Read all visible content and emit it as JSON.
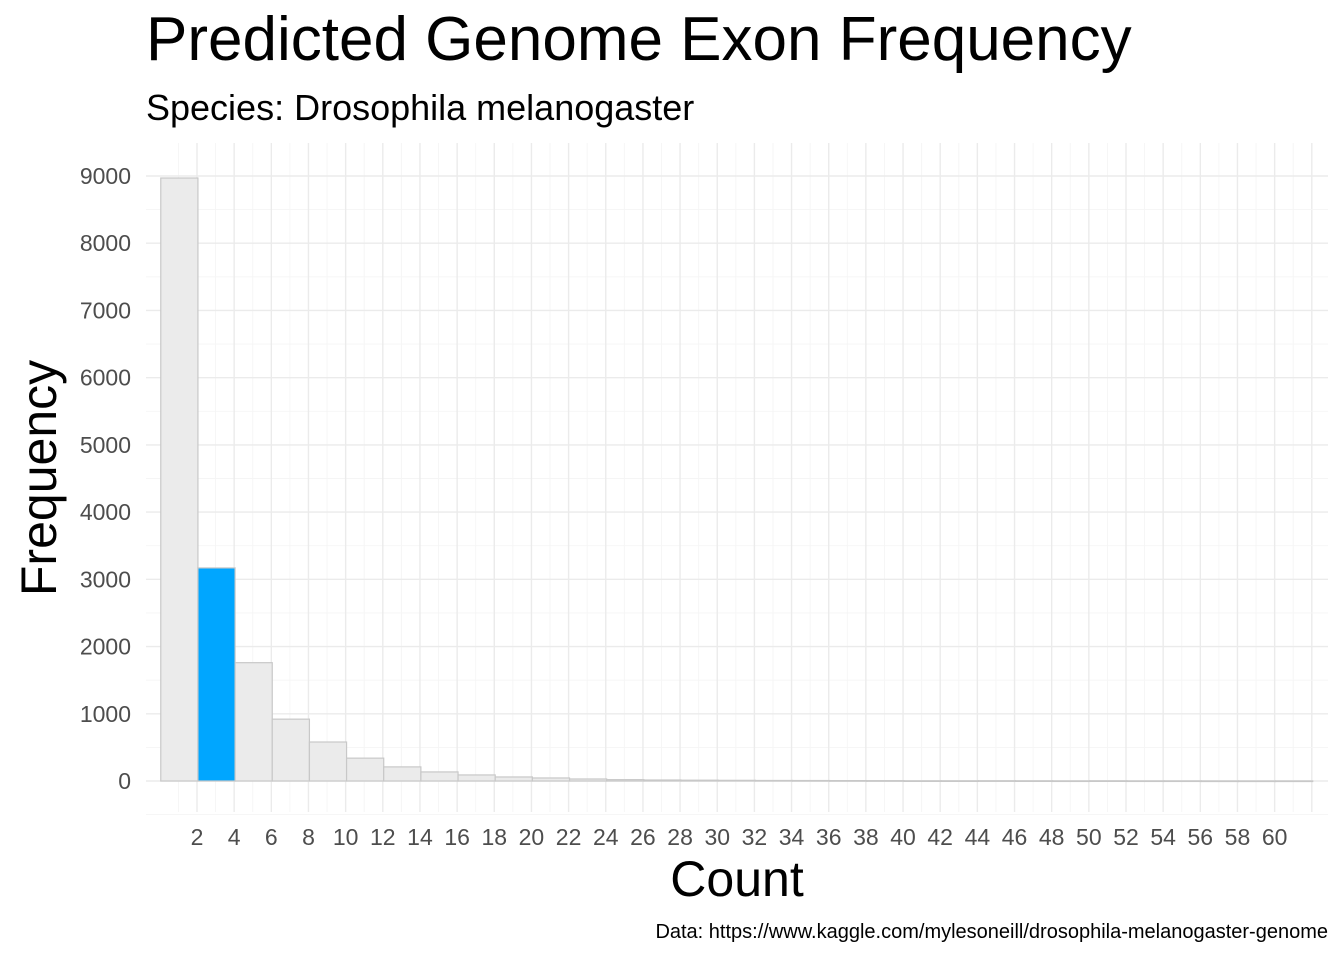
{
  "chart_data": {
    "type": "bar",
    "title": "Predicted Genome Exon Frequency",
    "subtitle": "Species: Drosophila melanogaster",
    "xlabel": "Count",
    "ylabel": "Frequency",
    "caption": "Data: https://www.kaggle.com/mylesoneill/drosophila-melanogaster-genome",
    "x_ticks": [
      "2",
      "4",
      "6",
      "8",
      "10",
      "12",
      "14",
      "16",
      "18",
      "20",
      "22",
      "24",
      "26",
      "28",
      "30",
      "32",
      "34",
      "36",
      "38",
      "40",
      "42",
      "44",
      "46",
      "48",
      "50",
      "52",
      "54",
      "56",
      "58",
      "60"
    ],
    "y_ticks": [
      "0",
      "1000",
      "2000",
      "3000",
      "4000",
      "5000",
      "6000",
      "7000",
      "8000",
      "9000"
    ],
    "ylim": [
      0,
      9500
    ],
    "xlim": [
      0.3,
      62.8
    ],
    "bin_width": 2,
    "bins": [
      {
        "x": 2,
        "value": 8970,
        "highlight": false
      },
      {
        "x": 4,
        "value": 3170,
        "highlight": true
      },
      {
        "x": 6,
        "value": 1760,
        "highlight": false
      },
      {
        "x": 8,
        "value": 920,
        "highlight": false
      },
      {
        "x": 10,
        "value": 580,
        "highlight": false
      },
      {
        "x": 12,
        "value": 340,
        "highlight": false
      },
      {
        "x": 14,
        "value": 210,
        "highlight": false
      },
      {
        "x": 16,
        "value": 135,
        "highlight": false
      },
      {
        "x": 18,
        "value": 90,
        "highlight": false
      },
      {
        "x": 20,
        "value": 60,
        "highlight": false
      },
      {
        "x": 22,
        "value": 45,
        "highlight": false
      },
      {
        "x": 24,
        "value": 30,
        "highlight": false
      },
      {
        "x": 26,
        "value": 20,
        "highlight": false
      },
      {
        "x": 28,
        "value": 15,
        "highlight": false
      },
      {
        "x": 30,
        "value": 12,
        "highlight": false
      },
      {
        "x": 32,
        "value": 10,
        "highlight": false
      },
      {
        "x": 34,
        "value": 8,
        "highlight": false
      },
      {
        "x": 36,
        "value": 7,
        "highlight": false
      },
      {
        "x": 38,
        "value": 6,
        "highlight": false
      },
      {
        "x": 40,
        "value": 5,
        "highlight": false
      },
      {
        "x": 42,
        "value": 3,
        "highlight": false
      },
      {
        "x": 44,
        "value": 3,
        "highlight": false
      },
      {
        "x": 46,
        "value": 4,
        "highlight": false
      },
      {
        "x": 48,
        "value": 3,
        "highlight": false
      },
      {
        "x": 50,
        "value": 2,
        "highlight": false
      },
      {
        "x": 52,
        "value": 3,
        "highlight": false
      },
      {
        "x": 54,
        "value": 2,
        "highlight": false
      },
      {
        "x": 56,
        "value": 2,
        "highlight": false
      },
      {
        "x": 58,
        "value": 1,
        "highlight": false
      },
      {
        "x": 60,
        "value": 1,
        "highlight": false
      },
      {
        "x": 62,
        "value": 1,
        "highlight": false
      }
    ],
    "colors": {
      "bar_fill": "#ebebeb",
      "bar_stroke": "#c8c8c8",
      "highlight_fill": "#00a6ff",
      "grid_major": "#ebebeb",
      "grid_minor": "#f5f5f5"
    },
    "grid": true,
    "legend": "none"
  }
}
